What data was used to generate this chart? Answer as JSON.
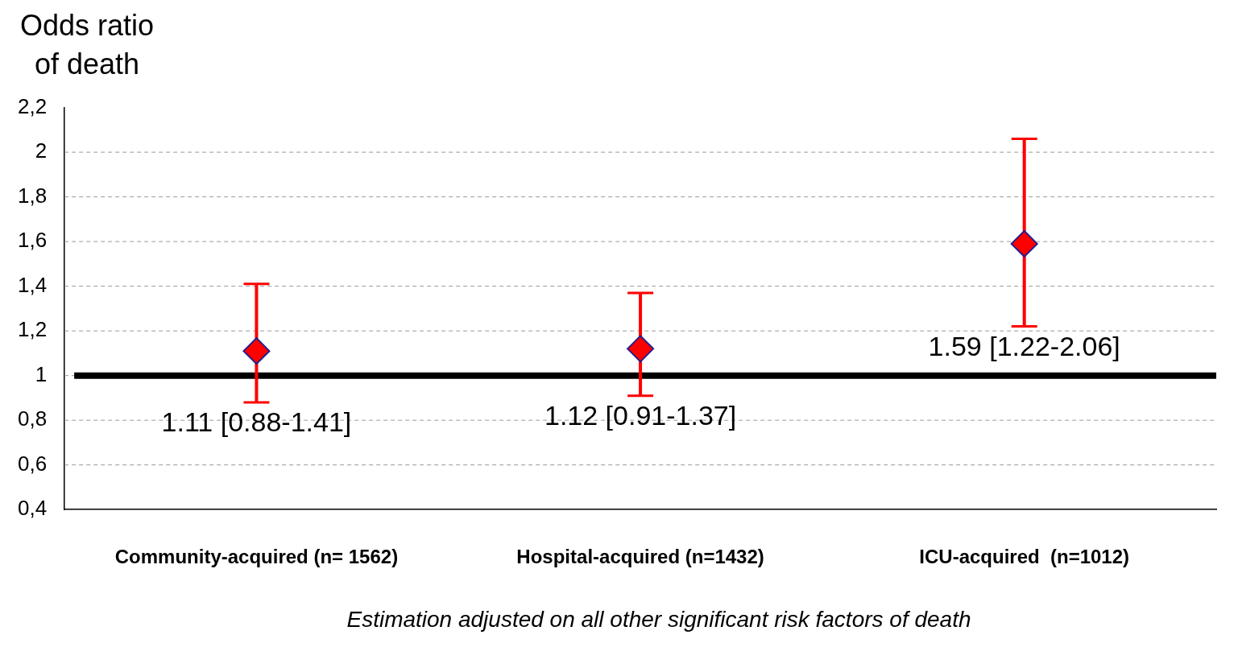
{
  "chart_data": {
    "type": "scatter",
    "ylabel": "Odds ratio\nof death",
    "categories": [
      "Community-acquired (n= 1562)",
      "Hospital-acquired (n=1432)",
      "ICU-acquired  (n=1012)"
    ],
    "series": [
      {
        "color": "#ff0000",
        "values": [
          1.11,
          1.12,
          1.59
        ],
        "errors": [
          [
            0.88,
            1.41
          ],
          [
            0.91,
            1.37
          ],
          [
            1.22,
            2.06
          ]
        ],
        "value_labels": [
          "1.11 [0.88-1.41]",
          "1.12 [0.91-1.37]",
          "1.59 [1.22-2.06]"
        ]
      }
    ],
    "ylim": [
      0.4,
      2.2
    ],
    "yticks": [
      {
        "value": 0.4,
        "label": "0,4"
      },
      {
        "value": 0.6,
        "label": "0,6"
      },
      {
        "value": 0.8,
        "label": "0,8"
      },
      {
        "value": 1,
        "label": "1"
      },
      {
        "value": 1.2,
        "label": "1,2"
      },
      {
        "value": 1.4,
        "label": "1,4"
      },
      {
        "value": 1.6,
        "label": "1,6"
      },
      {
        "value": 1.8,
        "label": "1,8"
      },
      {
        "value": 2,
        "label": "2"
      },
      {
        "value": 2.2,
        "label": "2,2"
      }
    ],
    "grid": "y",
    "marker": "diamond",
    "legend": false,
    "ref_lines": [
      {
        "axis": "y",
        "value": 1,
        "color": "#000000"
      }
    ],
    "annotations": [
      "Estimation adjusted on all other significant risk factors of death"
    ]
  }
}
